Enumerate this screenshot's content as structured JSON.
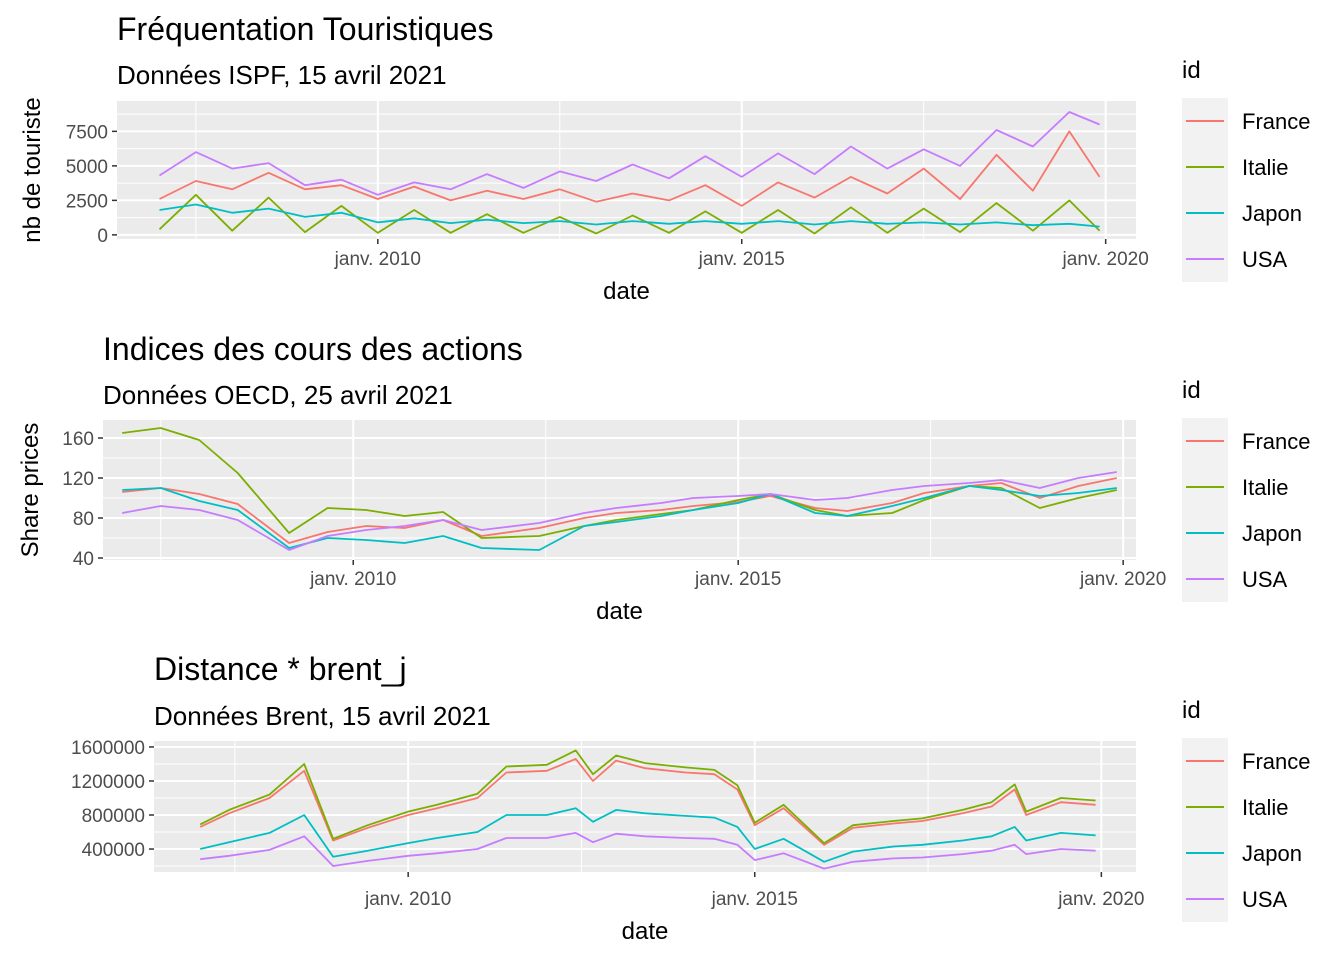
{
  "chart_data": [
    {
      "type": "line",
      "title": "Fréquentation Touristiques",
      "subtitle": "Données ISPF, 15 avril 2021",
      "xlabel": "date",
      "ylabel": "nb de touriste",
      "x_ticks": [
        "janv. 2010",
        "janv. 2015",
        "janv. 2020"
      ],
      "y_ticks": [
        "0",
        "2500",
        "5000",
        "7500"
      ],
      "ylim": [
        -300,
        9700
      ],
      "xlim": [
        "2006-06",
        "2020-06"
      ],
      "grid": true,
      "legend_title": "id",
      "legend_position": "right",
      "x": [
        "2007-01",
        "2007-07",
        "2008-01",
        "2008-07",
        "2009-01",
        "2009-07",
        "2010-01",
        "2010-07",
        "2011-01",
        "2011-07",
        "2012-01",
        "2012-07",
        "2013-01",
        "2013-07",
        "2014-01",
        "2014-07",
        "2015-01",
        "2015-07",
        "2016-01",
        "2016-07",
        "2017-01",
        "2017-07",
        "2018-01",
        "2018-07",
        "2019-01",
        "2019-07",
        "2019-12"
      ],
      "series": [
        {
          "name": "France",
          "color": "#F8766D",
          "values": [
            2600,
            3900,
            3300,
            4500,
            3300,
            3600,
            2600,
            3500,
            2500,
            3200,
            2600,
            3300,
            2400,
            3000,
            2500,
            3600,
            2100,
            3800,
            2700,
            4200,
            3000,
            4800,
            2600,
            5800,
            3200,
            7500,
            4200
          ]
        },
        {
          "name": "Italie",
          "color": "#7CAE00",
          "values": [
            400,
            2900,
            300,
            2700,
            200,
            2100,
            150,
            1800,
            150,
            1500,
            150,
            1300,
            100,
            1400,
            150,
            1700,
            150,
            1800,
            100,
            2000,
            150,
            1900,
            200,
            2300,
            300,
            2500,
            300
          ]
        },
        {
          "name": "Japon",
          "color": "#00BFC4",
          "values": [
            1800,
            2200,
            1600,
            1900,
            1300,
            1600,
            900,
            1200,
            850,
            1100,
            850,
            1000,
            750,
            1000,
            800,
            1000,
            800,
            1000,
            750,
            1000,
            800,
            900,
            750,
            900,
            700,
            800,
            600
          ]
        },
        {
          "name": "USA",
          "color": "#C77CFF",
          "values": [
            4300,
            6000,
            4800,
            5200,
            3600,
            4000,
            2900,
            3800,
            3300,
            4400,
            3400,
            4600,
            3900,
            5100,
            4100,
            5700,
            4200,
            5900,
            4400,
            6400,
            4800,
            6200,
            5000,
            7600,
            6400,
            8900,
            8000
          ]
        }
      ]
    },
    {
      "type": "line",
      "title": "Indices des cours des actions",
      "subtitle": "Données OECD, 25 avril 2021",
      "xlabel": "date",
      "ylabel": "Share prices",
      "x_ticks": [
        "janv. 2010",
        "janv. 2015",
        "janv. 2020"
      ],
      "y_ticks": [
        "40",
        "80",
        "120",
        "160"
      ],
      "ylim": [
        38,
        178
      ],
      "xlim": [
        "2006-10",
        "2020-03"
      ],
      "grid": true,
      "legend_title": "id",
      "legend_position": "right",
      "x": [
        "2007-01",
        "2007-07",
        "2008-01",
        "2008-07",
        "2009-03",
        "2009-09",
        "2010-03",
        "2010-09",
        "2011-03",
        "2011-09",
        "2012-06",
        "2013-01",
        "2013-06",
        "2014-01",
        "2014-06",
        "2015-01",
        "2015-06",
        "2016-01",
        "2016-06",
        "2017-01",
        "2017-06",
        "2018-01",
        "2018-06",
        "2018-12",
        "2019-06",
        "2019-12"
      ],
      "series": [
        {
          "name": "France",
          "color": "#F8766D",
          "values": [
            106,
            110,
            104,
            94,
            55,
            66,
            72,
            70,
            78,
            62,
            70,
            80,
            85,
            88,
            92,
            96,
            102,
            90,
            87,
            95,
            105,
            112,
            115,
            100,
            112,
            120
          ]
        },
        {
          "name": "Italie",
          "color": "#7CAE00",
          "values": [
            165,
            170,
            158,
            125,
            65,
            90,
            88,
            82,
            86,
            60,
            62,
            72,
            78,
            84,
            88,
            98,
            104,
            88,
            82,
            85,
            98,
            112,
            110,
            90,
            100,
            108
          ]
        },
        {
          "name": "Japon",
          "color": "#00BFC4",
          "values": [
            108,
            110,
            97,
            88,
            50,
            60,
            58,
            55,
            62,
            50,
            48,
            72,
            76,
            82,
            88,
            95,
            104,
            85,
            82,
            92,
            100,
            112,
            108,
            102,
            105,
            110
          ]
        },
        {
          "name": "USA",
          "color": "#C77CFF",
          "values": [
            85,
            92,
            88,
            78,
            48,
            62,
            68,
            72,
            78,
            68,
            75,
            85,
            90,
            95,
            100,
            102,
            104,
            98,
            100,
            108,
            112,
            115,
            118,
            110,
            120,
            126
          ]
        }
      ]
    },
    {
      "type": "line",
      "title": "Distance * brent_j",
      "subtitle": "Données Brent, 15 avril 2021",
      "xlabel": "date",
      "ylabel": "",
      "x_ticks": [
        "janv. 2010",
        "janv. 2015",
        "janv. 2020"
      ],
      "y_ticks": [
        "400000",
        "800000",
        "1200000",
        "1600000"
      ],
      "ylim": [
        130000,
        1670000
      ],
      "xlim": [
        "2006-05",
        "2020-07"
      ],
      "grid": true,
      "legend_title": "id",
      "legend_position": "right",
      "x": [
        "2007-01",
        "2007-06",
        "2008-01",
        "2008-07",
        "2008-12",
        "2009-06",
        "2010-01",
        "2010-06",
        "2011-01",
        "2011-06",
        "2012-01",
        "2012-06",
        "2012-09",
        "2013-01",
        "2013-06",
        "2014-01",
        "2014-06",
        "2014-10",
        "2015-01",
        "2015-06",
        "2016-01",
        "2016-06",
        "2017-01",
        "2017-06",
        "2018-01",
        "2018-06",
        "2018-10",
        "2018-12",
        "2019-06",
        "2019-12"
      ],
      "series": [
        {
          "name": "France",
          "color": "#F8766D",
          "values": [
            660000,
            820000,
            1000000,
            1320000,
            500000,
            650000,
            800000,
            880000,
            1000000,
            1300000,
            1320000,
            1460000,
            1200000,
            1440000,
            1350000,
            1300000,
            1280000,
            1100000,
            680000,
            880000,
            450000,
            650000,
            700000,
            730000,
            820000,
            900000,
            1100000,
            800000,
            950000,
            920000
          ]
        },
        {
          "name": "Italie",
          "color": "#7CAE00",
          "values": [
            690000,
            860000,
            1040000,
            1400000,
            520000,
            680000,
            840000,
            920000,
            1050000,
            1370000,
            1390000,
            1560000,
            1280000,
            1500000,
            1410000,
            1360000,
            1330000,
            1150000,
            710000,
            920000,
            470000,
            680000,
            730000,
            760000,
            860000,
            950000,
            1160000,
            840000,
            1000000,
            970000
          ]
        },
        {
          "name": "Japon",
          "color": "#00BFC4",
          "values": [
            400000,
            480000,
            590000,
            800000,
            310000,
            380000,
            470000,
            530000,
            600000,
            800000,
            800000,
            880000,
            720000,
            860000,
            820000,
            790000,
            770000,
            660000,
            400000,
            520000,
            250000,
            370000,
            430000,
            450000,
            500000,
            550000,
            660000,
            500000,
            590000,
            560000
          ]
        },
        {
          "name": "USA",
          "color": "#C77CFF",
          "values": [
            280000,
            320000,
            390000,
            550000,
            200000,
            260000,
            320000,
            350000,
            400000,
            530000,
            530000,
            590000,
            480000,
            580000,
            550000,
            530000,
            520000,
            450000,
            270000,
            350000,
            170000,
            250000,
            290000,
            300000,
            340000,
            380000,
            450000,
            340000,
            400000,
            380000
          ]
        }
      ]
    }
  ]
}
